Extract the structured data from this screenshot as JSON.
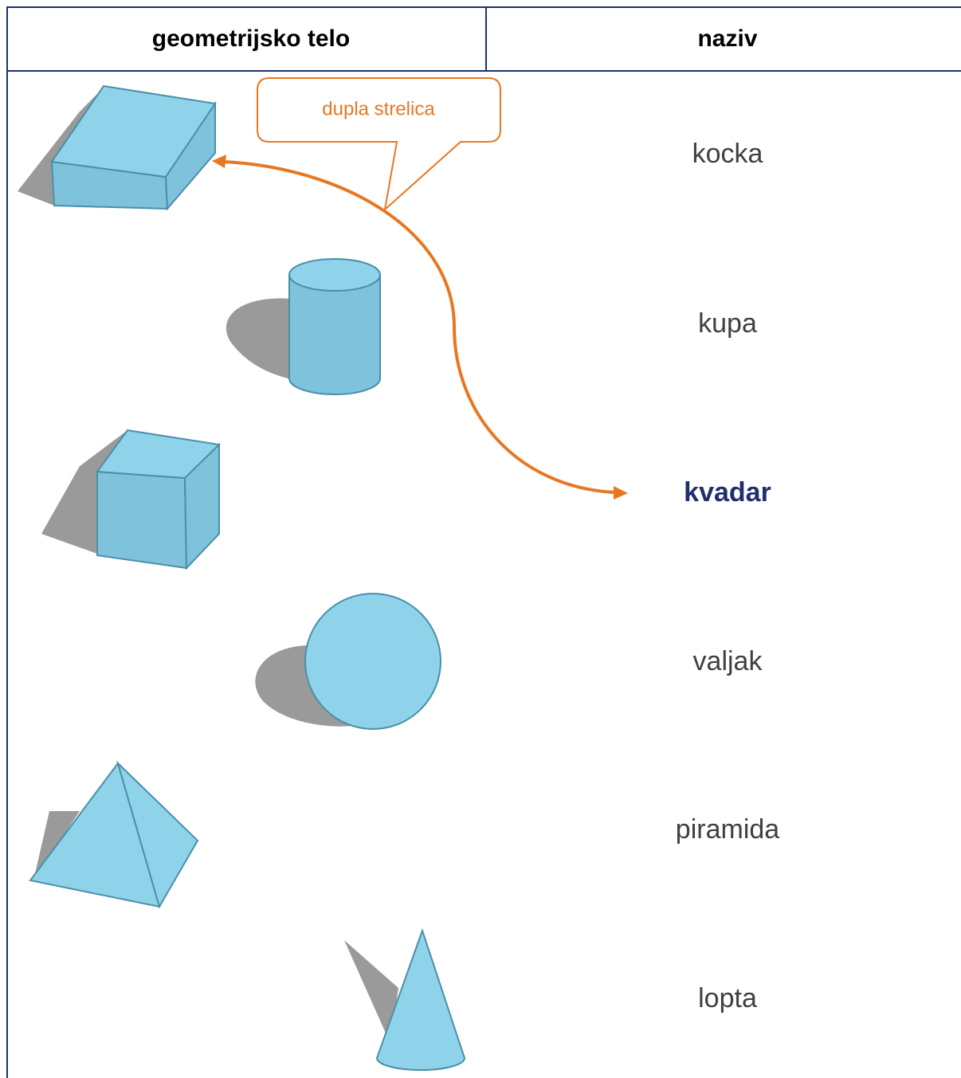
{
  "table": {
    "header": [
      "geometrijsko telo",
      "naziv"
    ],
    "rows": [
      "kocka",
      "kupa",
      "kvadar",
      "valjak",
      "piramida",
      "lopta"
    ]
  },
  "callout": {
    "label": "dupla strelica"
  }
}
